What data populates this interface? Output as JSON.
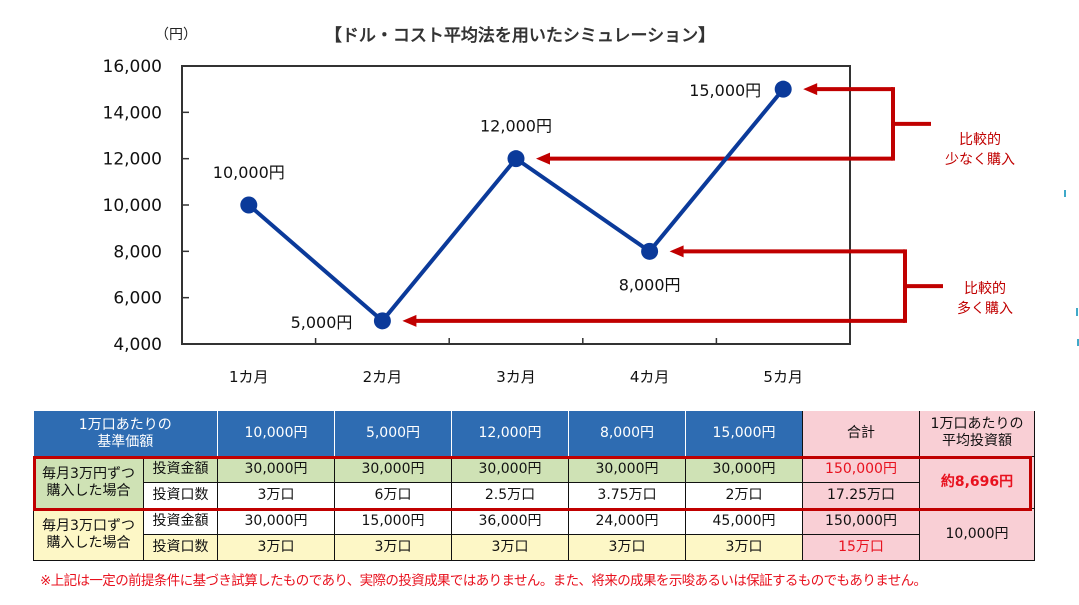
{
  "chart_data": {
    "type": "line",
    "title": "【ドル・コスト平均法を用いたシミュレーション】",
    "ylabel": "（円）",
    "xlabel": "",
    "categories": [
      "1カ月",
      "2カ月",
      "3カ月",
      "4カ月",
      "5カ月"
    ],
    "values": [
      10000,
      5000,
      12000,
      8000,
      15000
    ],
    "data_labels": [
      "10,000円",
      "5,000円",
      "12,000円",
      "8,000円",
      "15,000円"
    ],
    "ylim": [
      4000,
      16000
    ],
    "yticks": [
      4000,
      6000,
      8000,
      10000,
      12000,
      14000,
      16000
    ],
    "ytick_labels": [
      "4,000",
      "6,000",
      "8,000",
      "10,000",
      "12,000",
      "14,000",
      "16,000"
    ],
    "grid": false,
    "series_color": "#0b3a9a",
    "annotations": [
      {
        "text_line1": "比較的",
        "text_line2": "少なく購入",
        "points_to": [
          "3カ月",
          "5カ月"
        ],
        "color": "#c00000"
      },
      {
        "text_line1": "比較的",
        "text_line2": "多く購入",
        "points_to": [
          "2カ月",
          "4カ月"
        ],
        "color": "#c00000"
      }
    ]
  },
  "table": {
    "header_label_line1": "1万口あたりの",
    "header_label_line2": "基準価額",
    "prices": [
      "10,000円",
      "5,000円",
      "12,000円",
      "8,000円",
      "15,000円"
    ],
    "total_label": "合計",
    "avg_label_line1": "1万口あたりの",
    "avg_label_line2": "平均投資額",
    "groups": [
      {
        "label_line1": "毎月3万円ずつ",
        "label_line2": "購入した場合",
        "rows": [
          {
            "label": "投資金額",
            "values": [
              "30,000円",
              "30,000円",
              "30,000円",
              "30,000円",
              "30,000円"
            ],
            "total": "150,000円"
          },
          {
            "label": "投資口数",
            "values": [
              "3万口",
              "6万口",
              "2.5万口",
              "3.75万口",
              "2万口"
            ],
            "total": "17.25万口"
          }
        ],
        "average": "約8,696円"
      },
      {
        "label_line1": "毎月3万口ずつ",
        "label_line2": "購入した場合",
        "rows": [
          {
            "label": "投資金額",
            "values": [
              "30,000円",
              "15,000円",
              "36,000円",
              "24,000円",
              "45,000円"
            ],
            "total": "150,000円"
          },
          {
            "label": "投資口数",
            "values": [
              "3万口",
              "3万口",
              "3万口",
              "3万口",
              "3万口"
            ],
            "total": "15万口"
          }
        ],
        "average": "10,000円"
      }
    ]
  },
  "note": "※上記は一定の前提条件に基づき試算したものであり、実際の投資成果ではありません。また、将来の成果を示唆あるいは保証するものでもありません。",
  "colors": {
    "header_blue": "#2e6cb2",
    "highlight_red": "#c00000",
    "text_red": "#e8111e",
    "green_fill": "#cfe2b5",
    "yellow_fill": "#fdf7c6",
    "pink_fill": "#f9cfd5"
  }
}
